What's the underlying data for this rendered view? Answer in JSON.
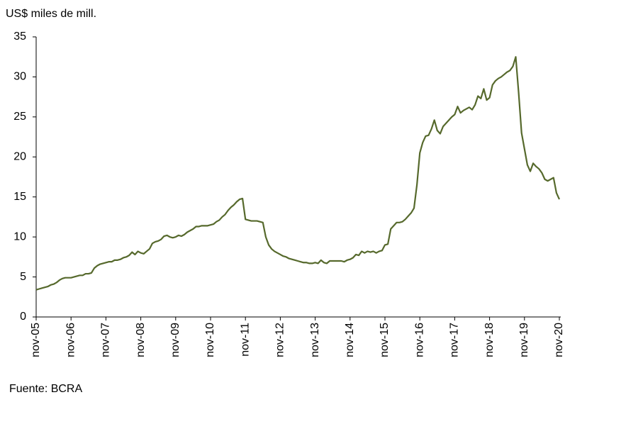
{
  "chart_data": {
    "type": "line",
    "y_axis_title": "US$ miles de mill.",
    "source": "Fuente: BCRA",
    "categories": [
      "nov-05",
      null,
      null,
      null,
      null,
      null,
      null,
      null,
      null,
      null,
      null,
      null,
      "nov-06",
      null,
      null,
      null,
      null,
      null,
      null,
      null,
      null,
      null,
      null,
      null,
      "nov-07",
      null,
      null,
      null,
      null,
      null,
      null,
      null,
      null,
      null,
      null,
      null,
      "nov-08",
      null,
      null,
      null,
      null,
      null,
      null,
      null,
      null,
      null,
      null,
      null,
      "nov-09",
      null,
      null,
      null,
      null,
      null,
      null,
      null,
      null,
      null,
      null,
      null,
      "nov-10",
      null,
      null,
      null,
      null,
      null,
      null,
      null,
      null,
      null,
      null,
      null,
      "nov-11",
      null,
      null,
      null,
      null,
      null,
      null,
      null,
      null,
      null,
      null,
      null,
      "nov-12",
      null,
      null,
      null,
      null,
      null,
      null,
      null,
      null,
      null,
      null,
      null,
      "nov-13",
      null,
      null,
      null,
      null,
      null,
      null,
      null,
      null,
      null,
      null,
      null,
      "nov-14",
      null,
      null,
      null,
      null,
      null,
      null,
      null,
      null,
      null,
      null,
      null,
      "nov-15",
      null,
      null,
      null,
      null,
      null,
      null,
      null,
      null,
      null,
      null,
      null,
      "nov-16",
      null,
      null,
      null,
      null,
      null,
      null,
      null,
      null,
      null,
      null,
      null,
      "nov-17",
      null,
      null,
      null,
      null,
      null,
      null,
      null,
      null,
      null,
      null,
      null,
      "nov-18",
      null,
      null,
      null,
      null,
      null,
      null,
      null,
      null,
      null,
      null,
      null,
      "nov-19",
      null,
      null,
      null,
      null,
      null,
      null,
      null,
      null,
      null,
      null,
      null,
      "nov-20"
    ],
    "values": [
      3.4,
      3.5,
      3.6,
      3.7,
      3.8,
      4.0,
      4.1,
      4.3,
      4.6,
      4.8,
      4.9,
      4.9,
      4.9,
      5.0,
      5.1,
      5.2,
      5.2,
      5.4,
      5.4,
      5.5,
      6.1,
      6.4,
      6.6,
      6.7,
      6.8,
      6.9,
      6.9,
      7.1,
      7.1,
      7.2,
      7.4,
      7.5,
      7.7,
      8.1,
      7.8,
      8.2,
      8.0,
      7.9,
      8.2,
      8.5,
      9.2,
      9.4,
      9.5,
      9.7,
      10.1,
      10.2,
      10.0,
      9.9,
      10.0,
      10.2,
      10.1,
      10.3,
      10.6,
      10.8,
      11.0,
      11.3,
      11.3,
      11.4,
      11.4,
      11.4,
      11.5,
      11.6,
      11.9,
      12.1,
      12.5,
      12.8,
      13.3,
      13.7,
      14.0,
      14.4,
      14.7,
      14.8,
      12.2,
      12.1,
      12.0,
      12.0,
      12.0,
      11.9,
      11.8,
      10.0,
      9.0,
      8.5,
      8.2,
      8.0,
      7.8,
      7.6,
      7.5,
      7.3,
      7.2,
      7.1,
      7.0,
      6.9,
      6.8,
      6.8,
      6.7,
      6.7,
      6.8,
      6.7,
      7.1,
      6.8,
      6.7,
      7.0,
      7.0,
      7.0,
      7.0,
      7.0,
      6.9,
      7.1,
      7.2,
      7.4,
      7.8,
      7.7,
      8.2,
      8.0,
      8.2,
      8.1,
      8.2,
      8.0,
      8.2,
      8.3,
      9.0,
      9.1,
      11.0,
      11.4,
      11.8,
      11.8,
      11.9,
      12.2,
      12.6,
      13.0,
      13.6,
      16.5,
      20.5,
      21.8,
      22.6,
      22.7,
      23.5,
      24.6,
      23.3,
      22.9,
      23.8,
      24.2,
      24.6,
      25.0,
      25.3,
      26.3,
      25.5,
      25.8,
      26.0,
      26.2,
      25.9,
      26.5,
      27.6,
      27.3,
      28.5,
      27.1,
      27.4,
      29.0,
      29.5,
      29.8,
      30.0,
      30.3,
      30.6,
      30.8,
      31.3,
      32.5,
      28.0,
      23.0,
      21.0,
      19.0,
      18.2,
      19.2,
      18.8,
      18.5,
      18.0,
      17.2,
      17.0,
      17.2,
      17.4,
      15.5,
      14.7
    ],
    "color": "#56692c",
    "ylim": [
      0,
      35
    ],
    "yticks": [
      0,
      5,
      10,
      15,
      20,
      25,
      30,
      35
    ]
  }
}
